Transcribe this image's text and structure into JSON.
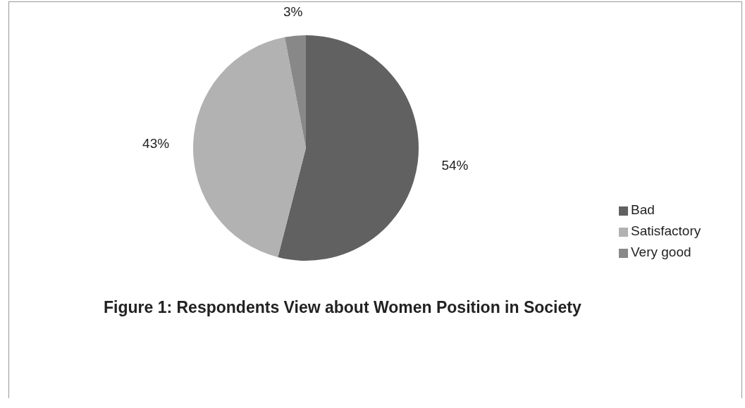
{
  "chart_data": {
    "type": "pie",
    "title": "Figure 1: Respondents View about Women Position in Society",
    "categories": [
      "Bad",
      "Satisfactory",
      "Very good"
    ],
    "values": [
      54,
      43,
      3
    ],
    "value_labels": [
      "54%",
      "43%",
      "3%"
    ],
    "colors": [
      "#616161",
      "#b2b2b2",
      "#888888"
    ],
    "legend": "right"
  }
}
